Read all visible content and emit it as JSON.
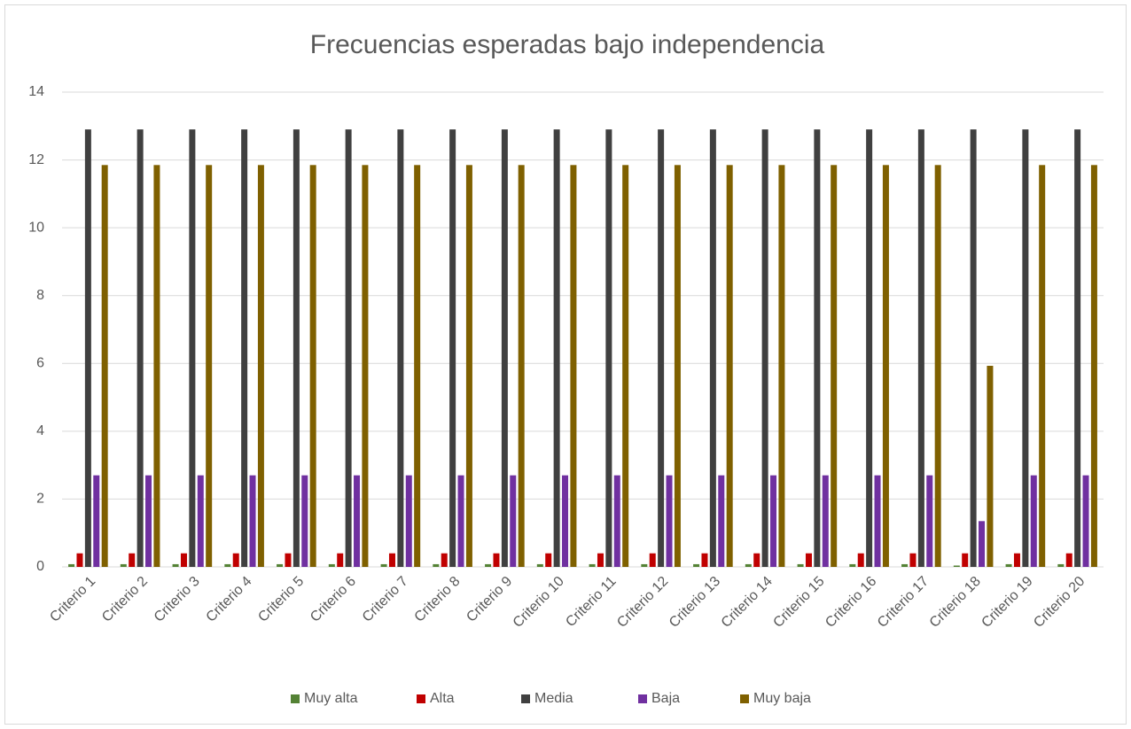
{
  "chart_data": {
    "type": "bar",
    "title": "Frecuencias esperadas bajo independencia",
    "categories": [
      "Criterio 1",
      "Criterio 2",
      "Criterio 3",
      "Criterio 4",
      "Criterio 5",
      "Criterio 6",
      "Criterio 7",
      "Criterio 8",
      "Criterio 9",
      "Criterio 10",
      "Criterio 11",
      "Criterio 12",
      "Criterio 13",
      "Criterio 14",
      "Criterio 15",
      "Criterio 16",
      "Criterio 17",
      "Criterio 18",
      "Criterio 19",
      "Criterio 20"
    ],
    "series": [
      {
        "name": "Muy alta",
        "color": "#548235",
        "values": [
          0.08,
          0.08,
          0.08,
          0.08,
          0.08,
          0.08,
          0.08,
          0.08,
          0.08,
          0.08,
          0.08,
          0.08,
          0.08,
          0.08,
          0.08,
          0.08,
          0.08,
          0.04,
          0.08,
          0.08
        ]
      },
      {
        "name": "Alta",
        "color": "#c00000",
        "values": [
          0.4,
          0.4,
          0.4,
          0.4,
          0.4,
          0.4,
          0.4,
          0.4,
          0.4,
          0.4,
          0.4,
          0.4,
          0.4,
          0.4,
          0.4,
          0.4,
          0.4,
          0.4,
          0.4,
          0.4
        ]
      },
      {
        "name": "Media",
        "color": "#404040",
        "values": [
          12.9,
          12.9,
          12.9,
          12.9,
          12.9,
          12.9,
          12.9,
          12.9,
          12.9,
          12.9,
          12.9,
          12.9,
          12.9,
          12.9,
          12.9,
          12.9,
          12.9,
          12.9,
          12.9,
          12.9
        ]
      },
      {
        "name": "Baja",
        "color": "#7030a0",
        "values": [
          2.7,
          2.7,
          2.7,
          2.7,
          2.7,
          2.7,
          2.7,
          2.7,
          2.7,
          2.7,
          2.7,
          2.7,
          2.7,
          2.7,
          2.7,
          2.7,
          2.7,
          1.35,
          2.7,
          2.7
        ]
      },
      {
        "name": "Muy baja",
        "color": "#7f6000",
        "values": [
          11.85,
          11.85,
          11.85,
          11.85,
          11.85,
          11.85,
          11.85,
          11.85,
          11.85,
          11.85,
          11.85,
          11.85,
          11.85,
          11.85,
          11.85,
          11.85,
          11.85,
          5.93,
          11.85,
          11.85
        ]
      }
    ],
    "ylim": [
      0,
      14
    ],
    "yticks": [
      0,
      2,
      4,
      6,
      8,
      10,
      12,
      14
    ],
    "grid": true,
    "legend": "bottom"
  }
}
